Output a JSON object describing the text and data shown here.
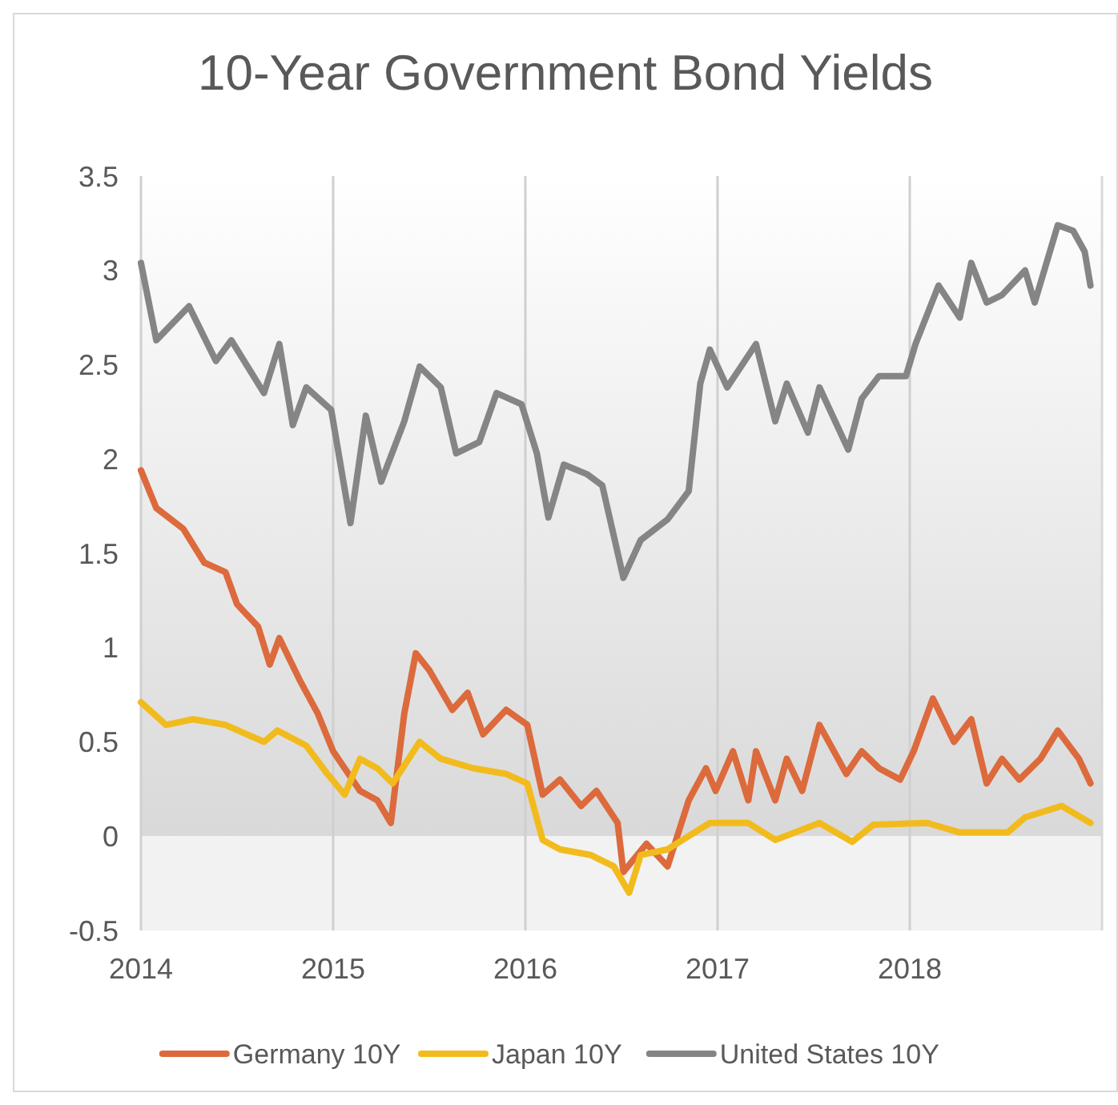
{
  "chart_data": {
    "type": "line",
    "title": "10-Year Government Bond Yields",
    "xlim": [
      2014,
      2019
    ],
    "xticks": [
      2014,
      2015,
      2016,
      2017,
      2018
    ],
    "ylim": [
      -0.5,
      3.5
    ],
    "yticks": [
      {
        "value": 3.5,
        "label": "3.5"
      },
      {
        "value": 3,
        "label": "3"
      },
      {
        "value": 2.5,
        "label": "2.5"
      },
      {
        "value": 2,
        "label": "2"
      },
      {
        "value": 1.5,
        "label": "1.5"
      },
      {
        "value": 1,
        "label": "1"
      },
      {
        "value": 0.5,
        "label": "0.5"
      },
      {
        "value": 0,
        "label": "0"
      },
      {
        "value": -0.5,
        "label": "-0.5"
      }
    ],
    "grid": "x",
    "legend": "bottom",
    "bands": [
      {
        "axis": "y",
        "from": 0,
        "to": 3.5,
        "color": "#d9d9d9"
      },
      {
        "axis": "y",
        "from": -0.5,
        "to": 0,
        "color": "#f2f2f2"
      }
    ],
    "line_style": "solid",
    "marker": "none",
    "series": [
      {
        "name": "Germany 10Y",
        "color": "#dc6a3c",
        "x": [
          2014.0,
          2014.08,
          2014.22,
          2014.33,
          2014.44,
          2014.5,
          2014.61,
          2014.67,
          2014.72,
          2014.83,
          2014.92,
          2015.0,
          2015.06,
          2015.14,
          2015.23,
          2015.3,
          2015.37,
          2015.43,
          2015.5,
          2015.62,
          2015.7,
          2015.78,
          2015.9,
          2016.01,
          2016.09,
          2016.18,
          2016.29,
          2016.37,
          2016.48,
          2016.51,
          2016.63,
          2016.74,
          2016.85,
          2016.94,
          2016.99,
          2017.08,
          2017.16,
          2017.2,
          2017.3,
          2017.36,
          2017.44,
          2017.53,
          2017.67,
          2017.75,
          2017.84,
          2017.95,
          2018.02,
          2018.12,
          2018.23,
          2018.32,
          2018.4,
          2018.48,
          2018.57,
          2018.68,
          2018.77,
          2018.88,
          2018.94
        ],
        "values": [
          1.94,
          1.74,
          1.63,
          1.45,
          1.4,
          1.23,
          1.11,
          0.91,
          1.05,
          0.82,
          0.65,
          0.45,
          0.36,
          0.24,
          0.19,
          0.07,
          0.65,
          0.97,
          0.88,
          0.67,
          0.76,
          0.54,
          0.67,
          0.59,
          0.22,
          0.3,
          0.16,
          0.24,
          0.07,
          -0.19,
          -0.04,
          -0.16,
          0.19,
          0.36,
          0.24,
          0.45,
          0.19,
          0.45,
          0.19,
          0.41,
          0.24,
          0.59,
          0.33,
          0.45,
          0.36,
          0.3,
          0.45,
          0.73,
          0.5,
          0.62,
          0.28,
          0.41,
          0.3,
          0.41,
          0.56,
          0.41,
          0.28
        ]
      },
      {
        "name": "Japan 10Y",
        "color": "#f2bb1d",
        "x": [
          2014.0,
          2014.13,
          2014.27,
          2014.44,
          2014.64,
          2014.71,
          2014.86,
          2014.97,
          2015.06,
          2015.14,
          2015.23,
          2015.31,
          2015.45,
          2015.56,
          2015.73,
          2015.9,
          2016.01,
          2016.09,
          2016.18,
          2016.34,
          2016.46,
          2016.54,
          2016.6,
          2016.74,
          2016.88,
          2016.96,
          2017.16,
          2017.3,
          2017.53,
          2017.7,
          2017.81,
          2018.09,
          2018.26,
          2018.51,
          2018.6,
          2018.79,
          2018.94
        ],
        "values": [
          0.71,
          0.59,
          0.62,
          0.59,
          0.5,
          0.56,
          0.48,
          0.33,
          0.22,
          0.41,
          0.36,
          0.28,
          0.5,
          0.41,
          0.36,
          0.33,
          0.28,
          -0.02,
          -0.07,
          -0.1,
          -0.16,
          -0.3,
          -0.1,
          -0.07,
          0.02,
          0.07,
          0.07,
          -0.02,
          0.07,
          -0.03,
          0.06,
          0.07,
          0.02,
          0.02,
          0.1,
          0.16,
          0.07
        ]
      },
      {
        "name": "United States 10Y",
        "color": "#858585",
        "x": [
          2014.0,
          2014.08,
          2014.25,
          2014.39,
          2014.47,
          2014.64,
          2014.72,
          2014.79,
          2014.86,
          2014.99,
          2015.09,
          2015.17,
          2015.25,
          2015.37,
          2015.45,
          2015.56,
          2015.64,
          2015.76,
          2015.85,
          2015.98,
          2016.06,
          2016.12,
          2016.2,
          2016.32,
          2016.4,
          2016.51,
          2016.6,
          2016.74,
          2016.85,
          2016.91,
          2016.96,
          2017.05,
          2017.2,
          2017.3,
          2017.36,
          2017.47,
          2017.53,
          2017.68,
          2017.75,
          2017.84,
          2017.98,
          2018.03,
          2018.15,
          2018.26,
          2018.32,
          2018.4,
          2018.48,
          2018.6,
          2018.65,
          2018.77,
          2018.85,
          2018.91,
          2018.94
        ],
        "values": [
          3.04,
          2.63,
          2.81,
          2.52,
          2.63,
          2.35,
          2.61,
          2.18,
          2.38,
          2.26,
          1.66,
          2.23,
          1.88,
          2.2,
          2.49,
          2.38,
          2.03,
          2.09,
          2.35,
          2.29,
          2.03,
          1.69,
          1.97,
          1.92,
          1.86,
          1.37,
          1.57,
          1.68,
          1.83,
          2.4,
          2.58,
          2.38,
          2.61,
          2.2,
          2.4,
          2.14,
          2.38,
          2.05,
          2.32,
          2.44,
          2.44,
          2.61,
          2.92,
          2.75,
          3.04,
          2.83,
          2.87,
          3.0,
          2.83,
          3.24,
          3.21,
          3.1,
          2.92
        ]
      }
    ]
  }
}
